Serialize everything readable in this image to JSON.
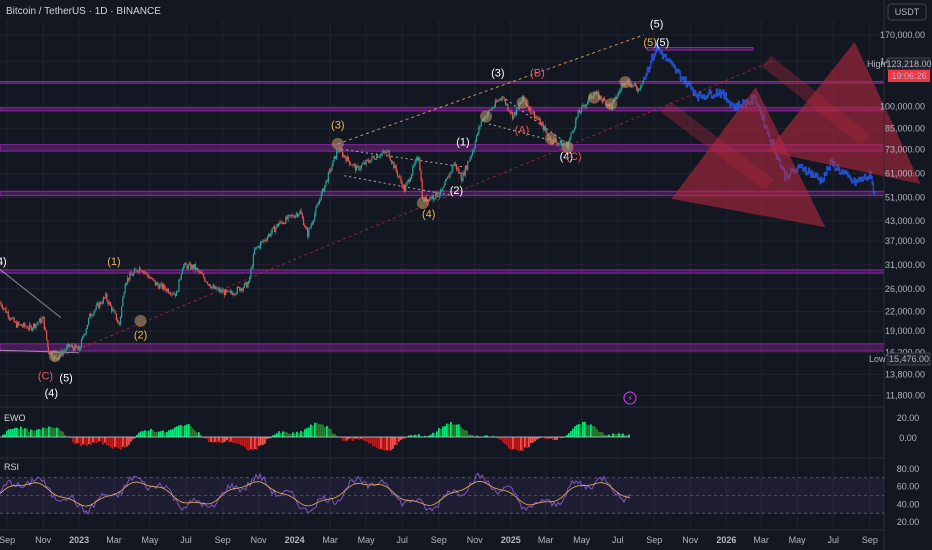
{
  "header": {
    "title": "Bitcoin / TetherUS · 1D · BINANCE",
    "currency": "USDT"
  },
  "price_badges": {
    "high_label": "High",
    "high_value": "123,218.00",
    "current_value": "119,217.49",
    "countdown": "19:06:26",
    "low_label": "Low",
    "low_value": "15,476.00"
  },
  "colors": {
    "background": "#131722",
    "up": "#26a69a",
    "down": "#ef5350",
    "zone": "#9c27b0",
    "wave_orange": "#f0b255",
    "projection": "#2962ff",
    "arrow": "#b2283e",
    "rsi": "#7e57c2"
  },
  "chart_data": {
    "type": "candlestick",
    "y_scale": "log",
    "ylim": [
      11000,
      190000
    ],
    "x_range": [
      "2022-08-20",
      "2026-09-25"
    ],
    "y_ticks": [
      "170,000.00",
      "140,000.00",
      "100,000.00",
      "85,000.00",
      "73,000.00",
      "61,000.00",
      "51,000.00",
      "43,000.00",
      "37,000.00",
      "31,000.00",
      "26,000.00",
      "22,000.00",
      "19,000.00",
      "16,200.00",
      "13,800.00",
      "11,800.00"
    ],
    "x_ticks": [
      "Sep",
      "Nov",
      "2023",
      "Mar",
      "May",
      "Jul",
      "Sep",
      "Nov",
      "2024",
      "Mar",
      "May",
      "Jul",
      "Sep",
      "Nov",
      "2025",
      "Mar",
      "May",
      "Jul",
      "Sep",
      "Nov",
      "2026",
      "Mar",
      "May",
      "Jul",
      "Sep"
    ],
    "price_path": [
      [
        "2022-08-20",
        23500
      ],
      [
        "2022-09-15",
        20000
      ],
      [
        "2022-10-10",
        19500
      ],
      [
        "2022-11-01",
        20800
      ],
      [
        "2022-11-10",
        16500
      ],
      [
        "2022-11-21",
        15476
      ],
      [
        "2022-12-15",
        17000
      ],
      [
        "2023-01-01",
        16600
      ],
      [
        "2023-01-20",
        21500
      ],
      [
        "2023-02-15",
        24500
      ],
      [
        "2023-03-10",
        20000
      ],
      [
        "2023-03-20",
        27500
      ],
      [
        "2023-04-14",
        30500
      ],
      [
        "2023-05-10",
        27000
      ],
      [
        "2023-06-15",
        25000
      ],
      [
        "2023-06-25",
        30800
      ],
      [
        "2023-07-15",
        30500
      ],
      [
        "2023-08-17",
        26000
      ],
      [
        "2023-09-12",
        25000
      ],
      [
        "2023-10-15",
        27000
      ],
      [
        "2023-10-25",
        34500
      ],
      [
        "2023-12-05",
        42000
      ],
      [
        "2024-01-10",
        46000
      ],
      [
        "2024-01-23",
        39000
      ],
      [
        "2024-02-15",
        52000
      ],
      [
        "2024-03-14",
        73000
      ],
      [
        "2024-04-15",
        63000
      ],
      [
        "2024-05-20",
        70000
      ],
      [
        "2024-06-07",
        71500
      ],
      [
        "2024-07-05",
        54000
      ],
      [
        "2024-07-29",
        70000
      ],
      [
        "2024-08-05",
        50000
      ],
      [
        "2024-09-06",
        53000
      ],
      [
        "2024-09-27",
        66000
      ],
      [
        "2024-10-10",
        59000
      ],
      [
        "2024-10-29",
        73000
      ],
      [
        "2024-11-12",
        90000
      ],
      [
        "2024-12-17",
        108000
      ],
      [
        "2025-01-05",
        93000
      ],
      [
        "2025-01-21",
        106000
      ],
      [
        "2025-02-25",
        86000
      ],
      [
        "2025-03-10",
        78000
      ],
      [
        "2025-04-07",
        75000
      ],
      [
        "2025-04-25",
        95000
      ],
      [
        "2025-05-22",
        111000
      ],
      [
        "2025-06-20",
        100000
      ],
      [
        "2025-07-14",
        122000
      ],
      [
        "2025-07-25",
        117000
      ],
      [
        "2025-08-05",
        114000
      ],
      [
        "2025-08-14",
        123218
      ]
    ],
    "projection_path": [
      [
        "2025-08-14",
        123218
      ],
      [
        "2025-09-05",
        155000
      ],
      [
        "2025-10-05",
        132000
      ],
      [
        "2025-11-15",
        108000
      ],
      [
        "2025-12-20",
        112000
      ],
      [
        "2026-01-15",
        100000
      ],
      [
        "2026-02-20",
        106000
      ],
      [
        "2026-03-10",
        85000
      ],
      [
        "2026-03-25",
        72000
      ],
      [
        "2026-04-10",
        60000
      ],
      [
        "2026-05-10",
        64000
      ],
      [
        "2026-06-10",
        58000
      ],
      [
        "2026-06-28",
        66000
      ],
      [
        "2026-08-05",
        57000
      ],
      [
        "2026-09-01",
        60000
      ],
      [
        "2026-09-10",
        52000
      ]
    ],
    "horizontal_zones": [
      {
        "low": 72000,
        "high": 75500
      },
      {
        "low": 51800,
        "high": 53500
      },
      {
        "low": 29200,
        "high": 29900
      },
      {
        "low": 16400,
        "high": 17300
      },
      {
        "low": 97000,
        "high": 99200
      },
      {
        "low": 152000,
        "high": 155000,
        "start": "2025-08-20",
        "end": "2026-02-15"
      },
      {
        "low": 119000,
        "high": 120500
      }
    ],
    "wave_labels": [
      {
        "t": "(4)",
        "x": "2022-08-20",
        "y": 31000,
        "c": "w"
      },
      {
        "t": "(C)",
        "x": "2022-11-05",
        "y": 13300,
        "c": "r"
      },
      {
        "t": "(5)",
        "x": "2022-12-10",
        "y": 13100,
        "c": "w"
      },
      {
        "t": "(4)",
        "x": "2022-11-15",
        "y": 11700,
        "c": "w"
      },
      {
        "t": "(1)",
        "x": "2023-03-01",
        "y": 31000,
        "c": "o"
      },
      {
        "t": "(2)",
        "x": "2023-04-15",
        "y": 18000,
        "c": "o"
      },
      {
        "t": "(3)",
        "x": "2024-03-14",
        "y": 85000,
        "c": "o"
      },
      {
        "t": "(4)",
        "x": "2024-08-15",
        "y": 44000,
        "c": "o"
      },
      {
        "t": "(1)",
        "x": "2024-10-12",
        "y": 75000,
        "c": "w"
      },
      {
        "t": "(2)",
        "x": "2024-10-01",
        "y": 52500,
        "c": "w"
      },
      {
        "t": "(3)",
        "x": "2024-12-10",
        "y": 125000,
        "c": "w"
      },
      {
        "t": "(A)",
        "x": "2025-01-20",
        "y": 82000,
        "c": "r"
      },
      {
        "t": "(B)",
        "x": "2025-02-15",
        "y": 125000,
        "c": "r"
      },
      {
        "t": "(4)",
        "x": "2025-04-05",
        "y": 67500,
        "c": "w"
      },
      {
        "t": "(C)",
        "x": "2025-04-18",
        "y": 67500,
        "c": "r"
      },
      {
        "t": "(5)",
        "x": "2025-08-25",
        "y": 157000,
        "c": "o"
      },
      {
        "t": "(5)",
        "x": "2025-09-15",
        "y": 157000,
        "c": "w"
      },
      {
        "t": "(5)",
        "x": "2025-09-05",
        "y": 180000,
        "c": "w"
      }
    ],
    "indicators": [
      {
        "name": "EWO",
        "y_ticks": [
          "20.00",
          "0.00"
        ]
      },
      {
        "name": "RSI",
        "y_ticks": [
          "80.00",
          "60.00",
          "40.00",
          "20.00"
        ]
      }
    ]
  }
}
